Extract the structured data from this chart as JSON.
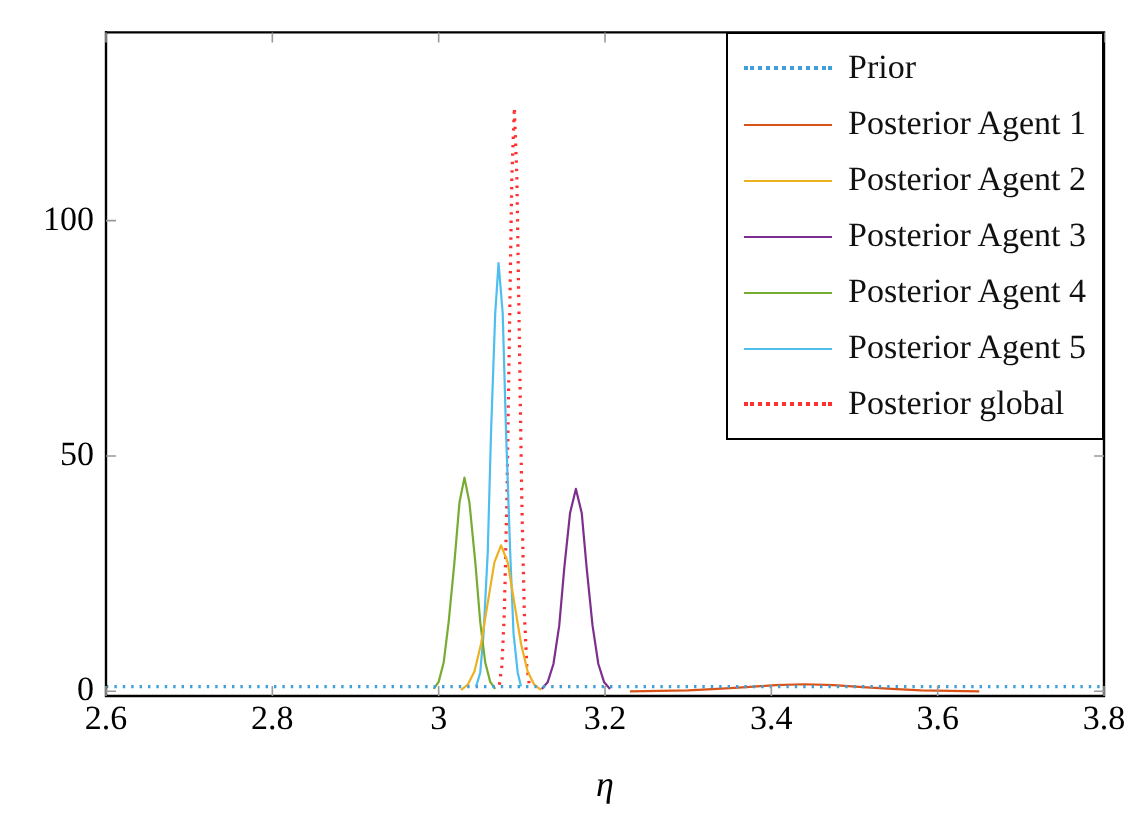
{
  "chart_data": {
    "type": "line",
    "xlabel": "η",
    "xlim": [
      2.6,
      3.8
    ],
    "xticks": [
      2.6,
      2.8,
      3,
      3.2,
      3.4,
      3.6,
      3.8
    ],
    "ylim": [
      -1,
      140
    ],
    "yticks": [
      0,
      50,
      100
    ],
    "grid": false,
    "legend": "top right",
    "marker": "none",
    "series": [
      {
        "name": "Prior",
        "color": "#3f9fd8",
        "line_style": "dotted",
        "x": [
          2.6,
          3.8
        ],
        "values": [
          1,
          1
        ]
      },
      {
        "name": "Posterior Agent 1",
        "color": "#d95319",
        "line_style": "solid",
        "x": [
          3.23,
          3.265,
          3.3,
          3.335,
          3.37,
          3.405,
          3.44,
          3.475,
          3.51,
          3.545,
          3.58,
          3.615,
          3.65
        ],
        "values": [
          0,
          0.1,
          0.2,
          0.5,
          0.9,
          1.3,
          1.5,
          1.3,
          0.9,
          0.5,
          0.2,
          0.1,
          0
        ]
      },
      {
        "name": "Posterior Agent 2",
        "color": "#edb120",
        "line_style": "solid",
        "x": [
          3.027,
          3.035,
          3.043,
          3.051,
          3.059,
          3.067,
          3.075,
          3.083,
          3.091,
          3.099,
          3.107,
          3.115,
          3.123
        ],
        "values": [
          0.3,
          1.4,
          4.2,
          10.1,
          18.8,
          27.4,
          31,
          27.4,
          18.8,
          10.1,
          4.2,
          1.4,
          0.3
        ]
      },
      {
        "name": "Posterior Agent 3",
        "color": "#7e2f8e",
        "line_style": "solid",
        "x": [
          3.124,
          3.131,
          3.138,
          3.145,
          3.151,
          3.158,
          3.165,
          3.172,
          3.178,
          3.185,
          3.192,
          3.199,
          3.206
        ],
        "values": [
          0.5,
          1.9,
          5.8,
          14,
          26.1,
          37.9,
          43,
          37.9,
          26.1,
          14,
          5.8,
          1.9,
          0.5
        ]
      },
      {
        "name": "Posterior Agent 4",
        "color": "#77ac30",
        "line_style": "solid",
        "x": [
          2.994,
          3,
          3.006,
          3.012,
          3.019,
          3.025,
          3.031,
          3.037,
          3.044,
          3.05,
          3.056,
          3.062,
          3.068
        ],
        "values": [
          0.5,
          2,
          6.1,
          14.7,
          27.5,
          40.1,
          45.4,
          40.1,
          27.5,
          14.7,
          6.1,
          2,
          0.5
        ]
      },
      {
        "name": "Posterior Agent 5",
        "color": "#4dbeee",
        "line_style": "solid",
        "x": [
          3.045,
          3.05,
          3.054,
          3.059,
          3.063,
          3.068,
          3.072,
          3.077,
          3.081,
          3.086,
          3.09,
          3.095,
          3.099
        ],
        "values": [
          1,
          4,
          12.3,
          29.5,
          55.2,
          80.3,
          91,
          80.3,
          55.2,
          29.5,
          12.3,
          4,
          1
        ]
      },
      {
        "name": "Posterior global",
        "color": "#ff3030",
        "line_style": "dotted",
        "x": [
          3.073,
          3.076,
          3.079,
          3.082,
          3.085,
          3.088,
          3.091,
          3.094,
          3.097,
          3.1,
          3.103,
          3.106,
          3.109
        ],
        "values": [
          1.4,
          5.4,
          16.8,
          40.3,
          75.2,
          109.4,
          124,
          109.4,
          75.2,
          40.3,
          16.8,
          5.4,
          1.4
        ]
      }
    ]
  }
}
